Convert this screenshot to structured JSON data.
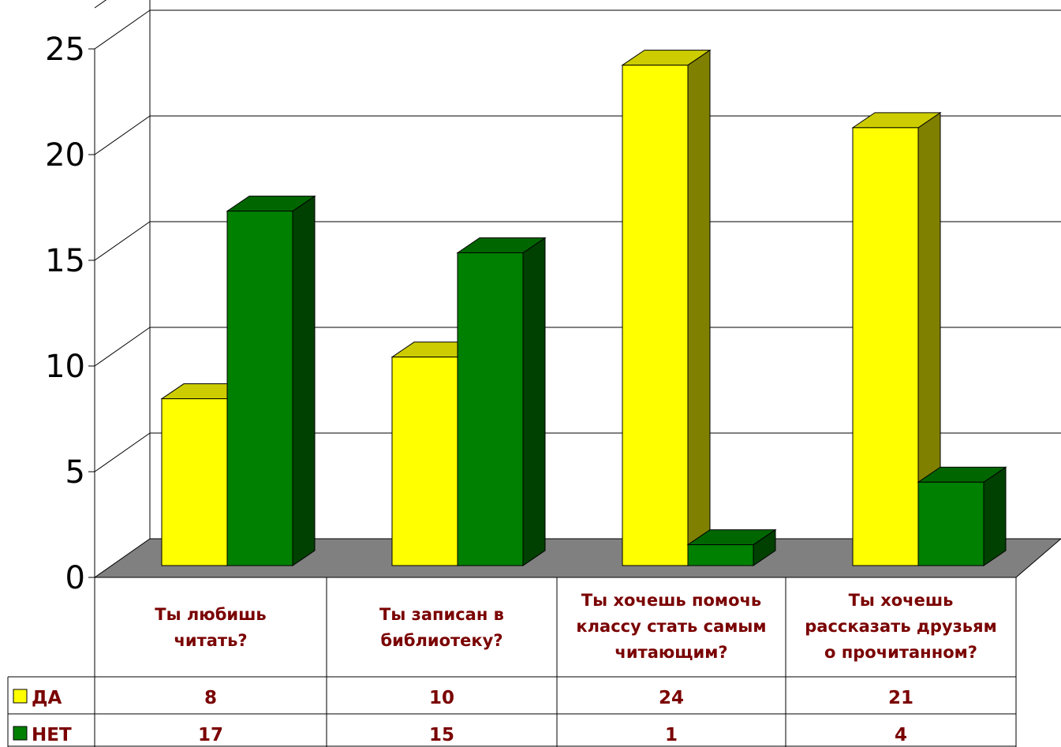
{
  "colors": {
    "yes_front": "#ffff00",
    "yes_top": "#cccc00",
    "yes_side": "#808000",
    "no_front": "#008000",
    "no_top": "#006600",
    "no_side": "#004000",
    "floor": "#808080",
    "text": "#7a0000"
  },
  "chart_data": {
    "type": "bar",
    "categories": [
      [
        "Ты любишь",
        "читать?"
      ],
      [
        "Ты записан в",
        "библиотеку?"
      ],
      [
        "Ты хочешь помочь",
        "классу стать самым",
        "читающим?"
      ],
      [
        "Ты хочешь",
        "рассказать друзьям",
        "о прочитанном?"
      ]
    ],
    "series": [
      {
        "name": "ДА",
        "values": [
          8,
          10,
          24,
          21
        ]
      },
      {
        "name": "НЕТ",
        "values": [
          17,
          15,
          1,
          4
        ]
      }
    ],
    "yticks": [
      "0",
      "5",
      "10",
      "15",
      "20",
      "25"
    ],
    "ylim": [
      0,
      25
    ],
    "grid": true,
    "legend": "data-table"
  }
}
